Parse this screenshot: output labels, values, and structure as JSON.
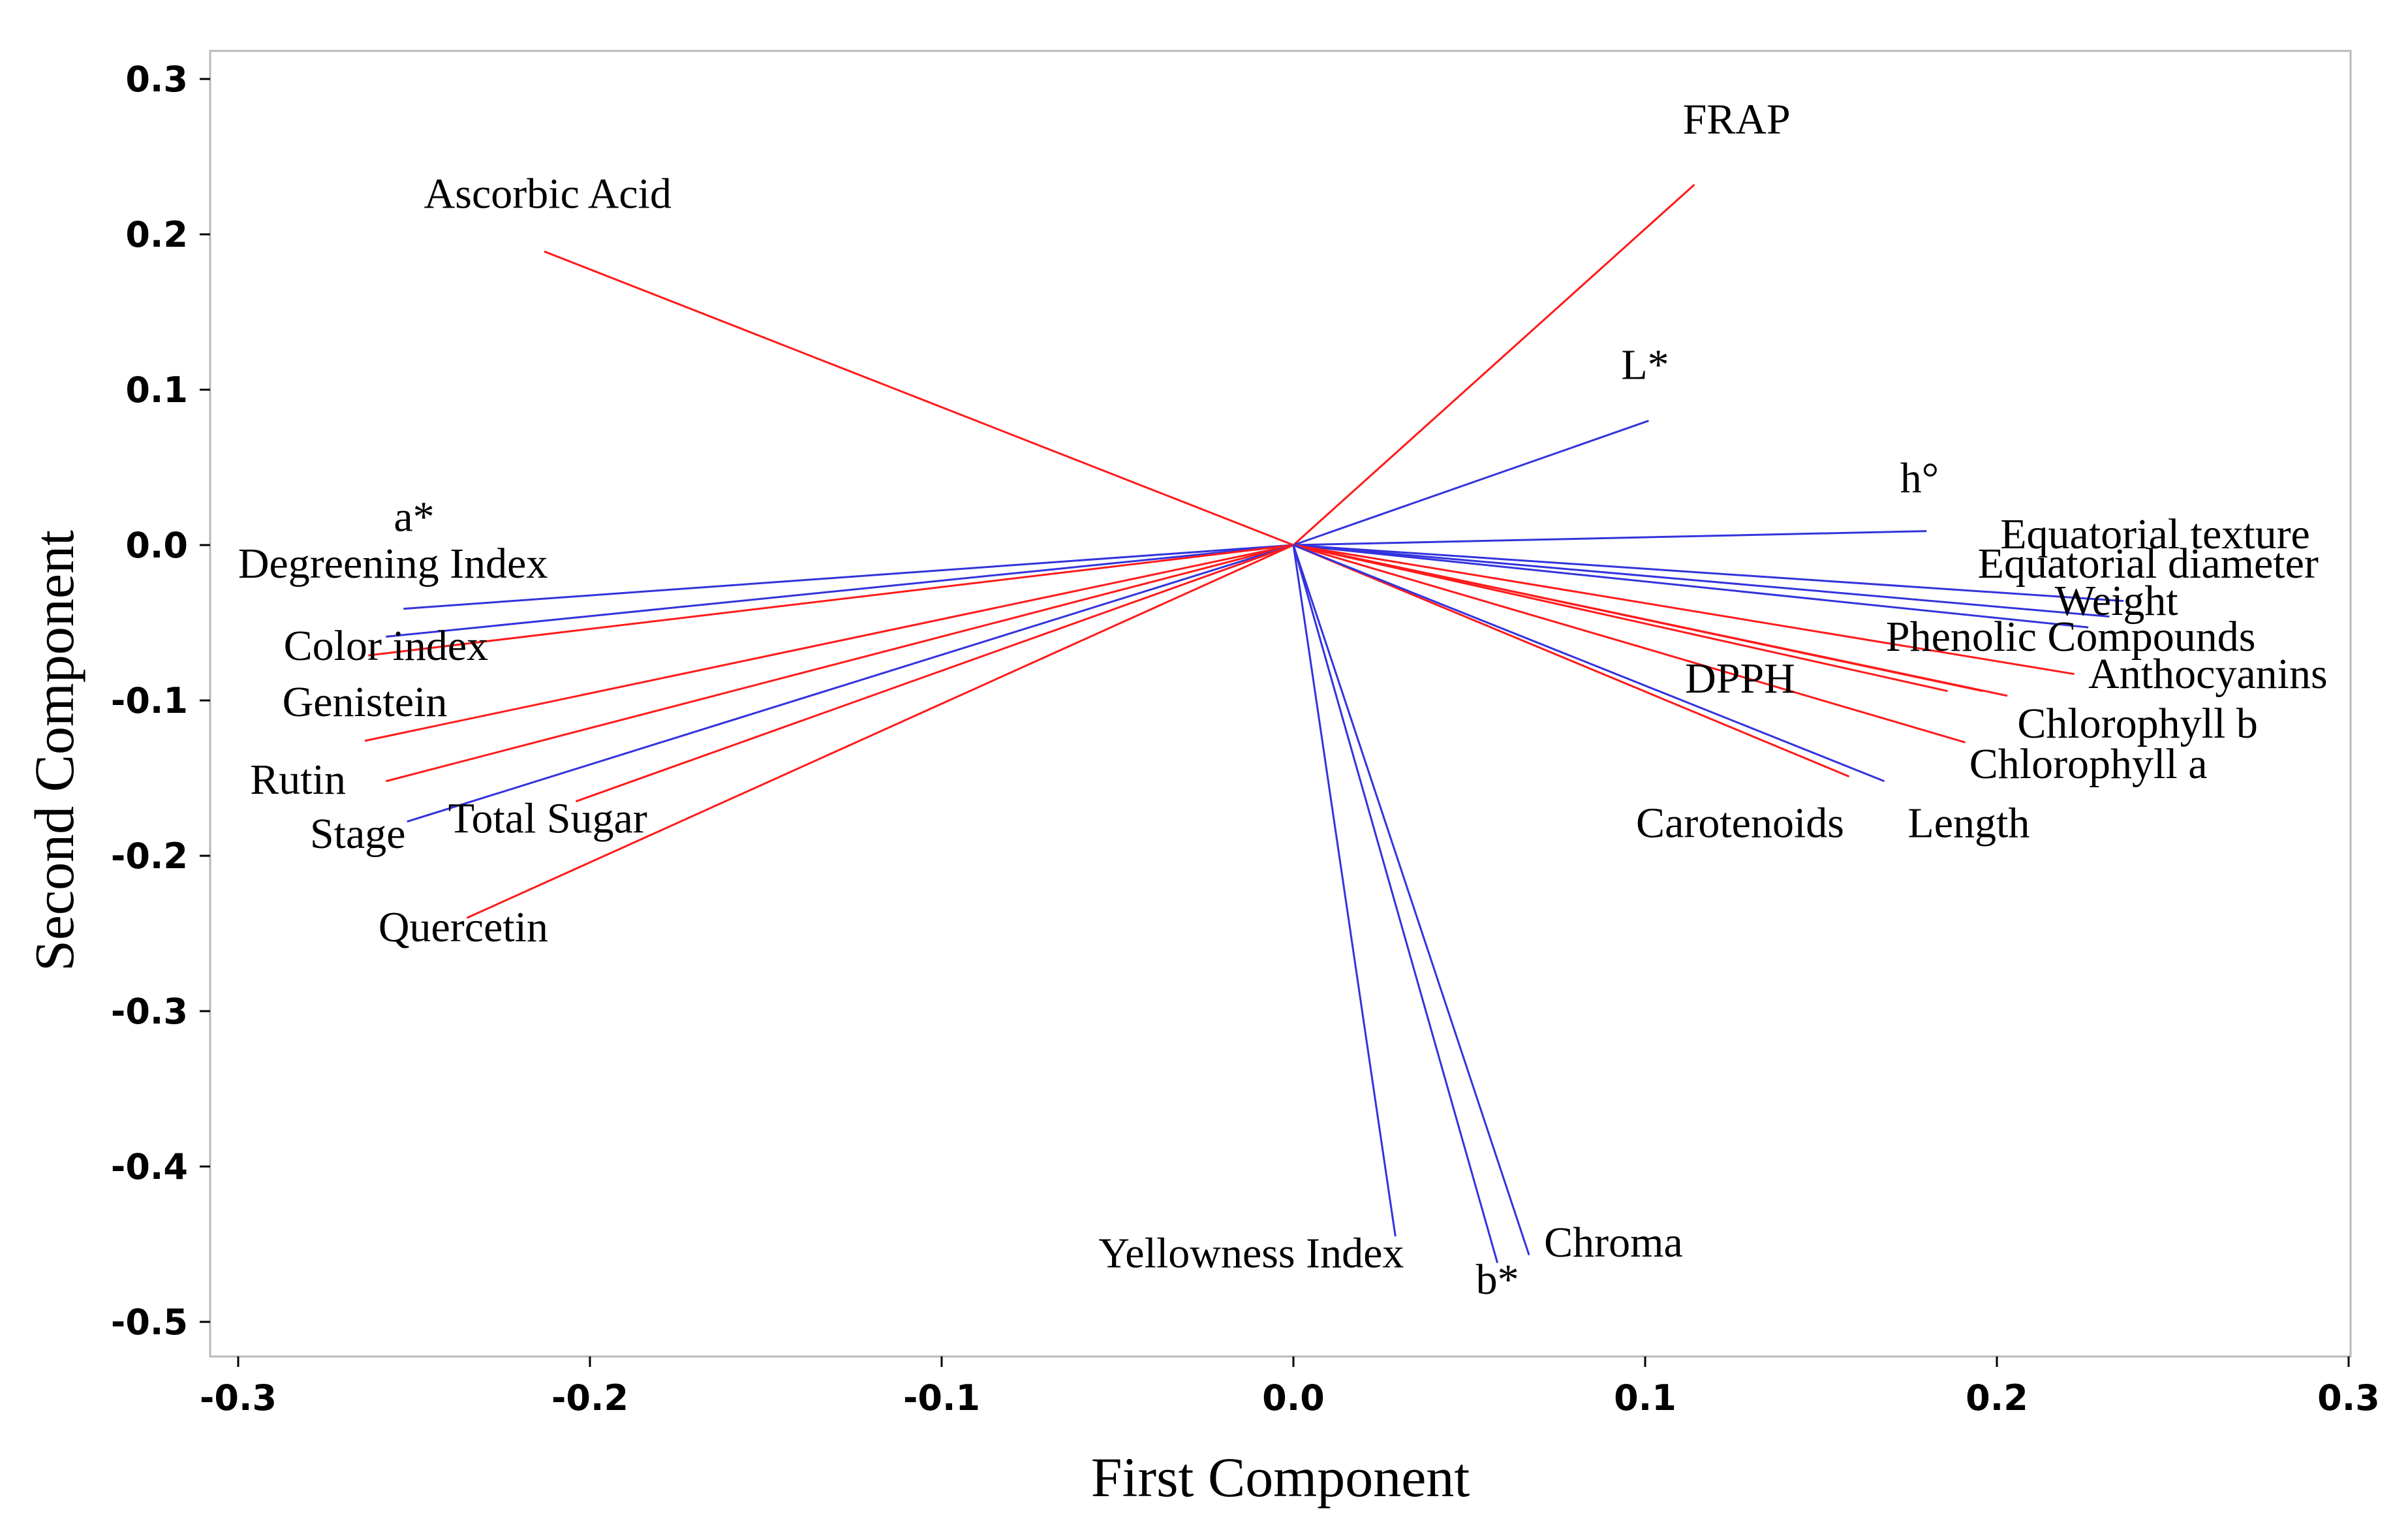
{
  "chart_data": {
    "type": "scatter",
    "subtype": "biplot-loadings",
    "xlabel": "First Component",
    "ylabel": "Second Component",
    "xlim": [
      -0.3,
      0.3
    ],
    "ylim": [
      -0.5,
      0.3
    ],
    "xticks": [
      -0.3,
      -0.2,
      -0.1,
      0.0,
      0.1,
      0.2,
      0.3
    ],
    "yticks": [
      0.3,
      0.2,
      0.1,
      0.0,
      -0.1,
      -0.2,
      -0.3,
      -0.4,
      -0.5
    ],
    "xtick_labels": [
      "-0.3",
      "-0.2",
      "-0.1",
      "0.0",
      "0.1",
      "0.2",
      "0.3"
    ],
    "ytick_labels": [
      "0.3",
      "0.2",
      "0.1",
      "0.0",
      "-0.1",
      "-0.2",
      "-0.3",
      "-0.4",
      "-0.5"
    ],
    "colors": {
      "red": "#ff1a1a",
      "blue": "#3333dd"
    },
    "vectors": [
      {
        "label": "FRAP",
        "x": 0.114,
        "y": 0.232,
        "color": "red",
        "lx": 0.126,
        "ly": 0.265
      },
      {
        "label": "Ascorbic Acid",
        "x": -0.213,
        "y": 0.189,
        "color": "red",
        "lx": -0.212,
        "ly": 0.217
      },
      {
        "label": "L*",
        "x": 0.101,
        "y": 0.08,
        "color": "blue",
        "lx": 0.1,
        "ly": 0.107
      },
      {
        "label": "h°",
        "x": 0.18,
        "y": 0.009,
        "color": "blue",
        "lx": 0.178,
        "ly": 0.034
      },
      {
        "label": "Equatorial texture",
        "x": 0.236,
        "y": -0.036,
        "color": "blue",
        "lx": 0.245,
        "ly": -0.002
      },
      {
        "label": "Equatorial diameter",
        "x": 0.232,
        "y": -0.046,
        "color": "blue",
        "lx": 0.243,
        "ly": -0.021
      },
      {
        "label": "Weight",
        "x": 0.226,
        "y": -0.053,
        "color": "blue",
        "lx": 0.234,
        "ly": -0.045
      },
      {
        "label": "Phenolic Compounds",
        "x": 0.196,
        "y": -0.094,
        "color": "red",
        "lx": 0.221,
        "ly": -0.068
      },
      {
        "label": "Anthocyanins",
        "x": 0.222,
        "y": -0.083,
        "color": "red",
        "lx": 0.26,
        "ly": -0.092
      },
      {
        "label": "Chlorophyll b",
        "x": 0.203,
        "y": -0.097,
        "color": "red",
        "lx": 0.24,
        "ly": -0.124
      },
      {
        "label": "Chlorophyll a",
        "x": 0.191,
        "y": -0.127,
        "color": "red",
        "lx": 0.226,
        "ly": -0.15
      },
      {
        "label": "DPPH",
        "x": 0.186,
        "y": -0.094,
        "color": "red",
        "lx": 0.127,
        "ly": -0.095
      },
      {
        "label": "Carotenoids",
        "x": 0.158,
        "y": -0.149,
        "color": "red",
        "lx": 0.127,
        "ly": -0.188
      },
      {
        "label": "Length",
        "x": 0.168,
        "y": -0.152,
        "color": "blue",
        "lx": 0.192,
        "ly": -0.188
      },
      {
        "label": "a*",
        "x": -0.253,
        "y": -0.041,
        "color": "blue",
        "lx": -0.25,
        "ly": 0.009
      },
      {
        "label": "Degreening Index",
        "x": -0.258,
        "y": -0.059,
        "color": "blue",
        "lx": -0.256,
        "ly": -0.021
      },
      {
        "label": "Color index",
        "x": -0.263,
        "y": -0.071,
        "color": "red",
        "lx": -0.258,
        "ly": -0.074
      },
      {
        "label": "Genistein",
        "x": -0.264,
        "y": -0.126,
        "color": "red",
        "lx": -0.264,
        "ly": -0.11
      },
      {
        "label": "Rutin",
        "x": -0.258,
        "y": -0.152,
        "color": "red",
        "lx": -0.283,
        "ly": -0.16
      },
      {
        "label": "Stage",
        "x": -0.252,
        "y": -0.178,
        "color": "blue",
        "lx": -0.266,
        "ly": -0.195
      },
      {
        "label": "Total Sugar",
        "x": -0.204,
        "y": -0.165,
        "color": "red",
        "lx": -0.212,
        "ly": -0.185
      },
      {
        "label": "Quercetin",
        "x": -0.235,
        "y": -0.24,
        "color": "red",
        "lx": -0.236,
        "ly": -0.255
      },
      {
        "label": "Yellowness Index",
        "x": 0.029,
        "y": -0.445,
        "color": "blue",
        "lx": -0.012,
        "ly": -0.465
      },
      {
        "label": "b*",
        "x": 0.058,
        "y": -0.462,
        "color": "blue",
        "lx": 0.058,
        "ly": -0.482
      },
      {
        "label": "Chroma",
        "x": 0.067,
        "y": -0.457,
        "color": "blue",
        "lx": 0.091,
        "ly": -0.458
      }
    ]
  }
}
